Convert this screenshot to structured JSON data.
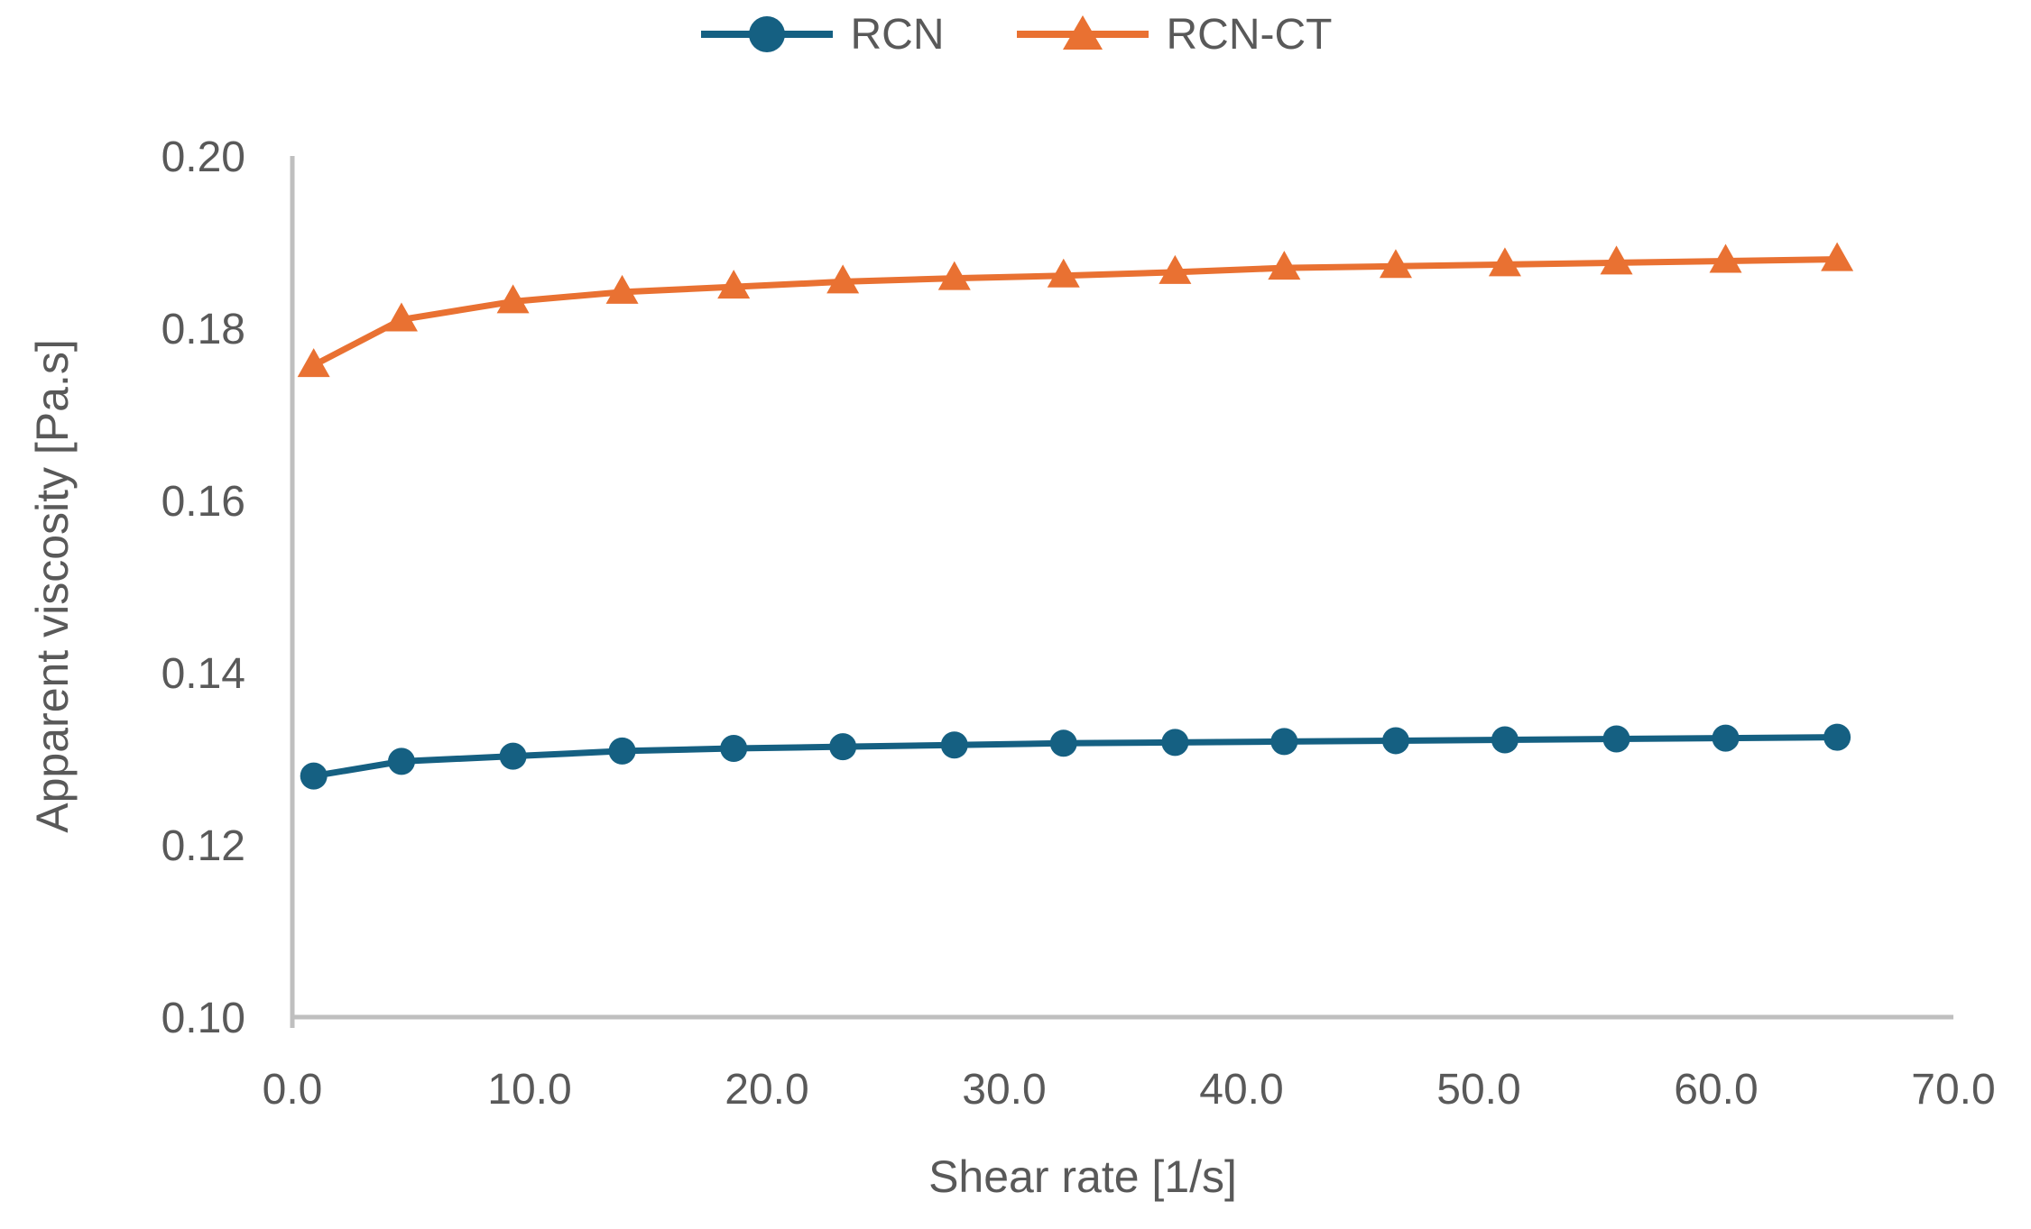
{
  "figure": {
    "background_color": "#ffffff",
    "axis_line_color": "#BFBFBF",
    "text_color": "#595959"
  },
  "chart_data": {
    "type": "line",
    "title": "",
    "xlabel": "Shear rate [1/s]",
    "ylabel": "Apparent viscosity [Pa.s]",
    "xlim": [
      0,
      70
    ],
    "ylim": [
      0.1,
      0.2
    ],
    "x_ticks": [
      0,
      10,
      20,
      30,
      40,
      50,
      60,
      70
    ],
    "x_tick_labels": [
      "0.0",
      "10.0",
      "20.0",
      "30.0",
      "40.0",
      "50.0",
      "60.0",
      "70.0"
    ],
    "y_ticks": [
      0.1,
      0.12,
      0.14,
      0.16,
      0.18,
      0.2
    ],
    "y_tick_labels": [
      "0.10",
      "0.12",
      "0.14",
      "0.16",
      "0.18",
      "0.20"
    ],
    "grid": false,
    "legend_position": "top-center",
    "x": [
      0.9,
      4.6,
      9.3,
      13.9,
      18.6,
      23.2,
      27.9,
      32.5,
      37.2,
      41.8,
      46.5,
      51.1,
      55.8,
      60.4,
      65.1
    ],
    "series": [
      {
        "name": "RCN",
        "color": "#156082",
        "marker": "circle",
        "values": [
          0.128,
          0.1297,
          0.1303,
          0.1309,
          0.1312,
          0.1314,
          0.1316,
          0.1318,
          0.1319,
          0.132,
          0.1321,
          0.1322,
          0.1323,
          0.1324,
          0.1325
        ]
      },
      {
        "name": "RCN-CT",
        "color": "#E97132",
        "marker": "triangle",
        "values": [
          0.1757,
          0.181,
          0.1831,
          0.1842,
          0.1848,
          0.1854,
          0.1858,
          0.1861,
          0.1865,
          0.187,
          0.1872,
          0.1874,
          0.1876,
          0.1878,
          0.188
        ]
      }
    ]
  }
}
